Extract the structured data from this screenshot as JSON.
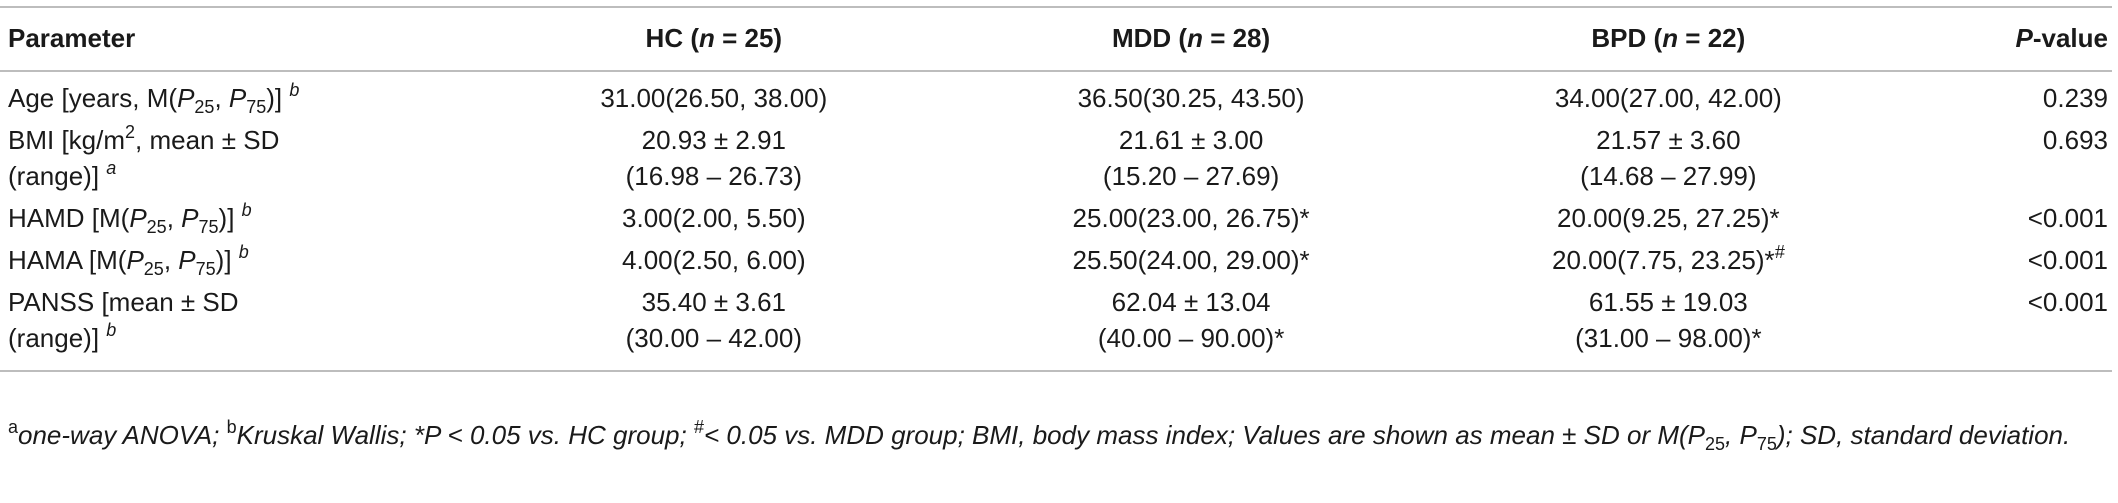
{
  "table": {
    "headers": {
      "parameter": "Parameter",
      "hc": {
        "label": "HC (",
        "n": "n",
        "eq": " = 25)"
      },
      "mdd": {
        "label": "MDD (",
        "n": "n",
        "eq": " = 28)"
      },
      "bpd": {
        "label": "BPD (",
        "n": "n",
        "eq": " = 22)"
      },
      "pvalue": {
        "p": "P",
        "rest": "-value"
      }
    },
    "rows": [
      {
        "param": {
          "a": "Age [years, M(",
          "p1": "P",
          "s1": "25",
          "mid": ", ",
          "p2": "P",
          "s2": "75",
          "end": ")] ",
          "note": "b"
        },
        "hc": "31.00(26.50, 38.00)",
        "mdd": "36.50(30.25, 43.50)",
        "bpd": "34.00(27.00, 42.00)",
        "p": "0.239"
      },
      {
        "param": {
          "a": "BMI [kg/m",
          "sup": "2",
          "b": ", mean ± SD",
          "line2": "(range)] ",
          "note": "a"
        },
        "hc": {
          "l1": "20.93 ± 2.91",
          "l2": "(16.98 – 26.73)"
        },
        "mdd": {
          "l1": "21.61 ± 3.00",
          "l2": "(15.20 – 27.69)"
        },
        "bpd": {
          "l1": "21.57 ± 3.60",
          "l2": "(14.68 – 27.99)"
        },
        "p": "0.693"
      },
      {
        "param": {
          "a": "HAMD [M(",
          "p1": "P",
          "s1": "25",
          "mid": ", ",
          "p2": "P",
          "s2": "75",
          "end": ")] ",
          "note": "b"
        },
        "hc": "3.00(2.00, 5.50)",
        "mdd": "25.00(23.00, 26.75)*",
        "bpd": "20.00(9.25, 27.25)*",
        "p": "<0.001"
      },
      {
        "param": {
          "a": "HAMA [M(",
          "p1": "P",
          "s1": "25",
          "mid": ", ",
          "p2": "P",
          "s2": "75",
          "end": ")] ",
          "note": "b"
        },
        "hc": "4.00(2.50, 6.00)",
        "mdd": "25.50(24.00, 29.00)*",
        "bpd": "20.00(7.75, 23.25)*",
        "bpd_sup": "#",
        "p": "<0.001"
      },
      {
        "param": {
          "a": "PANSS [mean ± SD",
          "line2": "(range)] ",
          "note": "b"
        },
        "hc": {
          "l1": "35.40 ± 3.61",
          "l2": "(30.00 – 42.00)"
        },
        "mdd": {
          "l1": "62.04 ± 13.04",
          "l2": "(40.00 – 90.00)*"
        },
        "bpd": {
          "l1": "61.55 ± 19.03",
          "l2": "(31.00 – 98.00)*"
        },
        "p": "<0.001"
      }
    ]
  },
  "footnote": {
    "a_mark": "a",
    "a_text": "one-way ANOVA; ",
    "b_mark": "b",
    "b_text": "Kruskal Wallis; *P < 0.05 vs. HC group; ",
    "hash_mark": "#",
    "hash_text": "< 0.05 vs. MDD group; BMI, body mass index; Values are shown as mean ± SD or M(P",
    "s1": "25",
    "mid": ", P",
    "s2": "75",
    "end": "); SD, standard deviation."
  }
}
